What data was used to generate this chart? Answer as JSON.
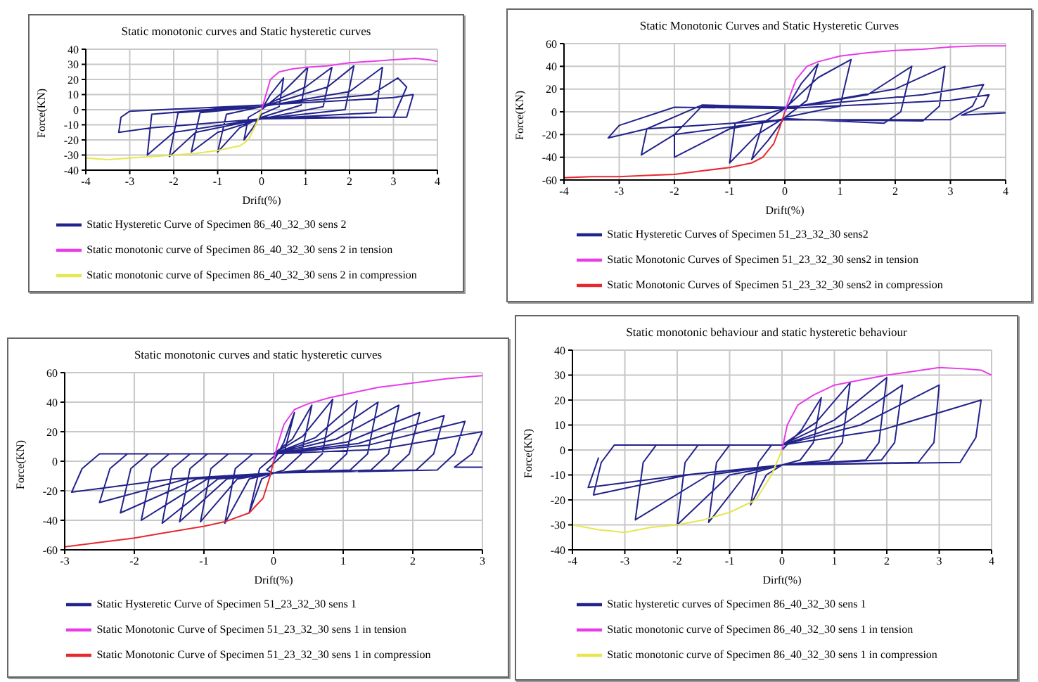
{
  "chart_data": [
    {
      "type": "line",
      "title": "Static monotonic curves and Static hysteretic curves",
      "xlabel": "Drift(%)",
      "ylabel": "Force(KN)",
      "xlim": [
        -4,
        4
      ],
      "xticks": [
        -4,
        -3,
        -2,
        -1,
        0,
        1,
        2,
        3,
        4
      ],
      "ylim": [
        -40,
        40
      ],
      "yticks": [
        -40,
        -30,
        -20,
        -10,
        0,
        10,
        20,
        30,
        40
      ],
      "grid": true,
      "legend": "bottom",
      "marker": "none",
      "series": [
        {
          "name": "Static Hysteretic Curve of Specimen 86_40_32_30 sens 2",
          "color": "#23238c",
          "x": [
            0,
            0.2,
            0.5,
            0.4,
            0,
            -0.2,
            -0.4,
            -0.3,
            0,
            0.5,
            1.05,
            0.9,
            0,
            -0.5,
            -1,
            -0.8,
            0,
            1,
            1.6,
            1.4,
            0,
            -1,
            -1.6,
            -1.4,
            0,
            1.5,
            2.1,
            1.9,
            0,
            -1.5,
            -2.1,
            -1.9,
            0,
            2,
            2.75,
            2.6,
            0,
            -2,
            -2.6,
            -2.5,
            0,
            2.5,
            3.1,
            3.3,
            3,
            0,
            -2.5,
            -3.25,
            -3.2,
            -3,
            0,
            3,
            3.45,
            3.3,
            0
          ],
          "values": [
            0,
            10,
            21,
            2,
            -3,
            -12,
            -20,
            -5,
            0,
            12,
            28,
            3,
            -5,
            -12,
            -28,
            -3,
            2,
            15,
            28,
            2,
            -6,
            -15,
            -28,
            -2,
            2,
            15,
            29,
            0,
            -6,
            -15,
            -31,
            -2,
            2,
            12,
            28,
            -2,
            -6,
            -15,
            -30,
            -3,
            3,
            10,
            21,
            15,
            -5,
            -6,
            -12,
            -15,
            -5,
            -1,
            3,
            8,
            10,
            -5,
            -5
          ]
        },
        {
          "name": "Static monotonic curve of Specimen 86_40_32_30 sens 2 in tension",
          "color": "#e83ce8",
          "x": [
            0,
            0.1,
            0.2,
            0.4,
            0.7,
            1,
            1.5,
            2,
            2.5,
            3,
            3.5,
            3.8,
            4
          ],
          "values": [
            0,
            10,
            20,
            25,
            27,
            28,
            29,
            31,
            32,
            33,
            34,
            33,
            32
          ]
        },
        {
          "name": "Static monotonic curve of Specimen 86_40_32_30 sens 2 in compression",
          "color": "#e6e650",
          "x": [
            0,
            -0.1,
            -0.3,
            -0.5,
            -1,
            -1.5,
            -2,
            -2.5,
            -3,
            -3.5,
            -4
          ],
          "values": [
            0,
            -8,
            -20,
            -24,
            -27,
            -29,
            -30,
            -31,
            -32,
            -33,
            -32
          ]
        }
      ]
    },
    {
      "type": "line",
      "title": "Static Monotonic Curves and Static Hysteretic Curves",
      "xlabel": "Drift(%)",
      "ylabel": "Force(KN)",
      "xlim": [
        -4,
        4
      ],
      "xticks": [
        -4,
        -3,
        -2,
        -1,
        0,
        1,
        2,
        3,
        4
      ],
      "ylim": [
        -60,
        60
      ],
      "yticks": [
        -60,
        -40,
        -20,
        0,
        20,
        40,
        60
      ],
      "grid": true,
      "legend": "bottom",
      "marker": "none",
      "series": [
        {
          "name": "Static Hysteretic Curves of Specimen 51_23_32_30 sens2",
          "color": "#23238c",
          "x": [
            0,
            0.3,
            0.6,
            0.4,
            0,
            -0.3,
            -0.6,
            -0.4,
            0,
            0.6,
            1.2,
            1,
            0,
            -0.5,
            -1,
            -0.9,
            0,
            1.5,
            2.3,
            2.1,
            1.8,
            0,
            -1,
            -2,
            -2,
            -1.5,
            0,
            2,
            2.9,
            2.8,
            2.5,
            0,
            -2,
            -2.6,
            -2.5,
            -1.5,
            0,
            2.5,
            3.6,
            3.4,
            3,
            0,
            -2.5,
            -3.2,
            -3,
            -2,
            0,
            3,
            3.7,
            3.6,
            3.2,
            4
          ],
          "values": [
            0,
            25,
            42,
            10,
            -5,
            -25,
            -42,
            -10,
            3,
            30,
            46,
            5,
            -5,
            -20,
            -45,
            -10,
            3,
            15,
            40,
            0,
            -10,
            -6,
            -15,
            -40,
            -20,
            5,
            3,
            20,
            40,
            5,
            -8,
            -7,
            -20,
            -38,
            -15,
            6,
            4,
            15,
            24,
            5,
            -7,
            -7,
            -15,
            -23,
            -12,
            4,
            3,
            10,
            15,
            5,
            -3,
            -1
          ]
        },
        {
          "name": "Static Monotonic Curves of Specimen 51_23_32_30 sens2 in tension",
          "color": "#e83ce8",
          "x": [
            0,
            0.1,
            0.2,
            0.4,
            0.6,
            1,
            1.5,
            2,
            2.5,
            3,
            3.5,
            4
          ],
          "values": [
            0,
            15,
            28,
            40,
            44,
            49,
            52,
            54,
            55,
            57,
            58,
            58
          ]
        },
        {
          "name": "Static Monotonic Curves of Specimen 51_23_32_30 sens2 in compression",
          "color": "#e8282f",
          "x": [
            0,
            -0.1,
            -0.2,
            -0.4,
            -0.6,
            -1,
            -1.5,
            -2,
            -2.5,
            -3,
            -3.5,
            -4
          ],
          "values": [
            0,
            -15,
            -28,
            -40,
            -45,
            -49,
            -52,
            -55,
            -56,
            -57,
            -57,
            -58
          ]
        }
      ]
    },
    {
      "type": "line",
      "title": "Static monotonic curves and static hysteretic curves",
      "xlabel": "Drift(%)",
      "ylabel": "Force(KN)",
      "xlim": [
        -3,
        3
      ],
      "xticks": [
        -3,
        -2,
        -1,
        0,
        1,
        2,
        3
      ],
      "ylim": [
        -60,
        60
      ],
      "yticks": [
        -60,
        -40,
        -20,
        0,
        20,
        40,
        60
      ],
      "grid": true,
      "legend": "bottom",
      "marker": "none",
      "series": [
        {
          "name": "Static Hysteretic Curve of Specimen 51_23_32_30 sens 1",
          "color": "#23238c",
          "x": [
            0,
            0.15,
            0.3,
            0.15,
            -0.1,
            0,
            -0.17,
            -0.35,
            -0.2,
            0.05,
            0,
            0.27,
            0.55,
            0.4,
            0.15,
            0,
            -0.35,
            -0.7,
            -0.55,
            -0.3,
            0,
            0.42,
            0.85,
            0.7,
            0.45,
            0,
            -0.52,
            -1.05,
            -0.9,
            -0.65,
            0,
            0.6,
            1.2,
            1.05,
            0.8,
            0,
            -0.67,
            -1.35,
            -1.2,
            -0.95,
            0,
            0.75,
            1.5,
            1.35,
            1.1,
            0,
            -0.8,
            -1.6,
            -1.45,
            -1.2,
            0,
            0.9,
            1.8,
            1.65,
            1.4,
            0,
            -0.95,
            -1.9,
            -1.75,
            -1.5,
            0,
            1.05,
            2.1,
            1.95,
            1.7,
            0,
            -1.1,
            -2.2,
            -2.05,
            -1.8,
            0,
            1.22,
            2.45,
            2.3,
            2.05,
            0,
            -1.25,
            -2.5,
            -2.35,
            -2.1,
            0,
            1.37,
            2.75,
            2.6,
            2.35,
            0,
            -1.45,
            -2.9,
            -2.75,
            -2.5,
            0,
            1.5,
            3,
            2.85,
            2.6,
            3
          ],
          "values": [
            0,
            13,
            33,
            5,
            -6,
            -8,
            -12,
            -35,
            -5,
            5,
            5,
            15,
            38,
            5,
            -6,
            -8,
            -12,
            -42,
            -5,
            5,
            5,
            17,
            42,
            5,
            -6,
            -8,
            -12,
            -41,
            -5,
            5,
            5,
            16,
            41,
            5,
            -6,
            -8,
            -12,
            -41,
            -5,
            5,
            5,
            16,
            40,
            5,
            -6,
            -8,
            -12,
            -42,
            -5,
            5,
            5,
            15,
            38,
            5,
            -6,
            -8,
            -12,
            -40,
            -5,
            5,
            5,
            13,
            33,
            5,
            -6,
            -8,
            -12,
            -35,
            -5,
            5,
            5,
            12,
            31,
            5,
            -6,
            -8,
            -12,
            -28,
            -5,
            5,
            5,
            11,
            27,
            5,
            -6,
            -8,
            -12,
            -21,
            -5,
            5,
            5,
            8,
            20,
            5,
            -4,
            -4
          ]
        },
        {
          "name": "Static Monotonic Curve of Specimen 51_23_32_30 sens 1 in tension",
          "color": "#e83ce8",
          "x": [
            0,
            0.05,
            0.15,
            0.3,
            0.5,
            0.8,
            1,
            1.5,
            2,
            2.5,
            3
          ],
          "values": [
            0,
            10,
            25,
            35,
            39,
            43,
            45,
            50,
            53,
            56,
            58
          ]
        },
        {
          "name": "Static Monotonic Curve of Specimen 51_23_32_30 sens 1 in compression",
          "color": "#e8282f",
          "x": [
            0,
            -0.05,
            -0.15,
            -0.35,
            -0.7,
            -1,
            -1.5,
            -2,
            -2.5,
            -3
          ],
          "values": [
            0,
            -10,
            -25,
            -35,
            -41,
            -44,
            -48,
            -52,
            -55,
            -58
          ]
        }
      ]
    },
    {
      "type": "line",
      "title": "Static monotonic behaviour and static hysteretic behaviour",
      "xlabel": "Dirft(%)",
      "ylabel": "Force(KN)",
      "xlim": [
        -4,
        4
      ],
      "xticks": [
        -4,
        -3,
        -2,
        -1,
        0,
        1,
        2,
        3,
        4
      ],
      "ylim": [
        -40,
        40
      ],
      "yticks": [
        -40,
        -30,
        -20,
        -10,
        0,
        10,
        20,
        30,
        40
      ],
      "grid": true,
      "legend": "bottom",
      "marker": "none",
      "series": [
        {
          "name": "Static hysteretic curves of Specimen 86_40_32_30 sens 1",
          "color": "#23238c",
          "x": [
            0,
            0.37,
            0.75,
            0.6,
            0.35,
            0,
            -0.3,
            -0.6,
            -0.45,
            -0.2,
            0,
            0.65,
            1.3,
            1.15,
            0.9,
            0,
            -0.7,
            -1.4,
            -1.25,
            -1,
            0,
            1,
            2,
            1.85,
            1.6,
            0,
            -1,
            -2,
            -1.85,
            -1.6,
            0,
            1.15,
            2.3,
            2.15,
            1.9,
            0,
            -1.4,
            -2.8,
            -2.65,
            -2.4,
            0,
            1.5,
            3,
            2.9,
            2.6,
            0,
            -1.8,
            -3.6,
            -3.45,
            -3.2,
            0,
            1.9,
            3.8,
            3.7,
            3.4,
            0,
            -1.85,
            -3.7,
            -3.5
          ],
          "values": [
            0,
            8,
            21,
            3,
            -4,
            -6,
            -10,
            -22,
            -5,
            2,
            2,
            11,
            27,
            3,
            -4,
            -6,
            -10,
            -29,
            -5,
            2,
            2,
            12,
            29,
            3,
            -4,
            -6,
            -10,
            -30,
            -5,
            2,
            2,
            10,
            26,
            3,
            -4,
            -6,
            -10,
            -28,
            -5,
            2,
            2,
            10,
            26,
            3,
            -5,
            -6,
            -10,
            -18,
            -5,
            2,
            2,
            8,
            20,
            5,
            -5,
            -6,
            -10,
            -15,
            -3
          ]
        },
        {
          "name": "Static monotonic curve of Specimen 86_40_32_30 sens 1 in tension",
          "color": "#e83ce8",
          "x": [
            0,
            0.1,
            0.3,
            0.6,
            1,
            1.5,
            2,
            2.5,
            3,
            3.5,
            3.8,
            4
          ],
          "values": [
            0,
            10,
            18,
            22,
            26,
            28,
            30,
            31.5,
            33,
            32.5,
            32,
            30
          ]
        },
        {
          "name": "Static monotonic curve of Specimen 86_40_32_30 sens 1 in compression",
          "color": "#e6e650",
          "x": [
            0,
            -0.2,
            -0.5,
            -1,
            -1.5,
            -2,
            -2.5,
            -3,
            -3.5,
            -4
          ],
          "values": [
            0,
            -10,
            -20,
            -25,
            -28,
            -30,
            -31,
            -33,
            -32,
            -30
          ]
        }
      ]
    }
  ]
}
